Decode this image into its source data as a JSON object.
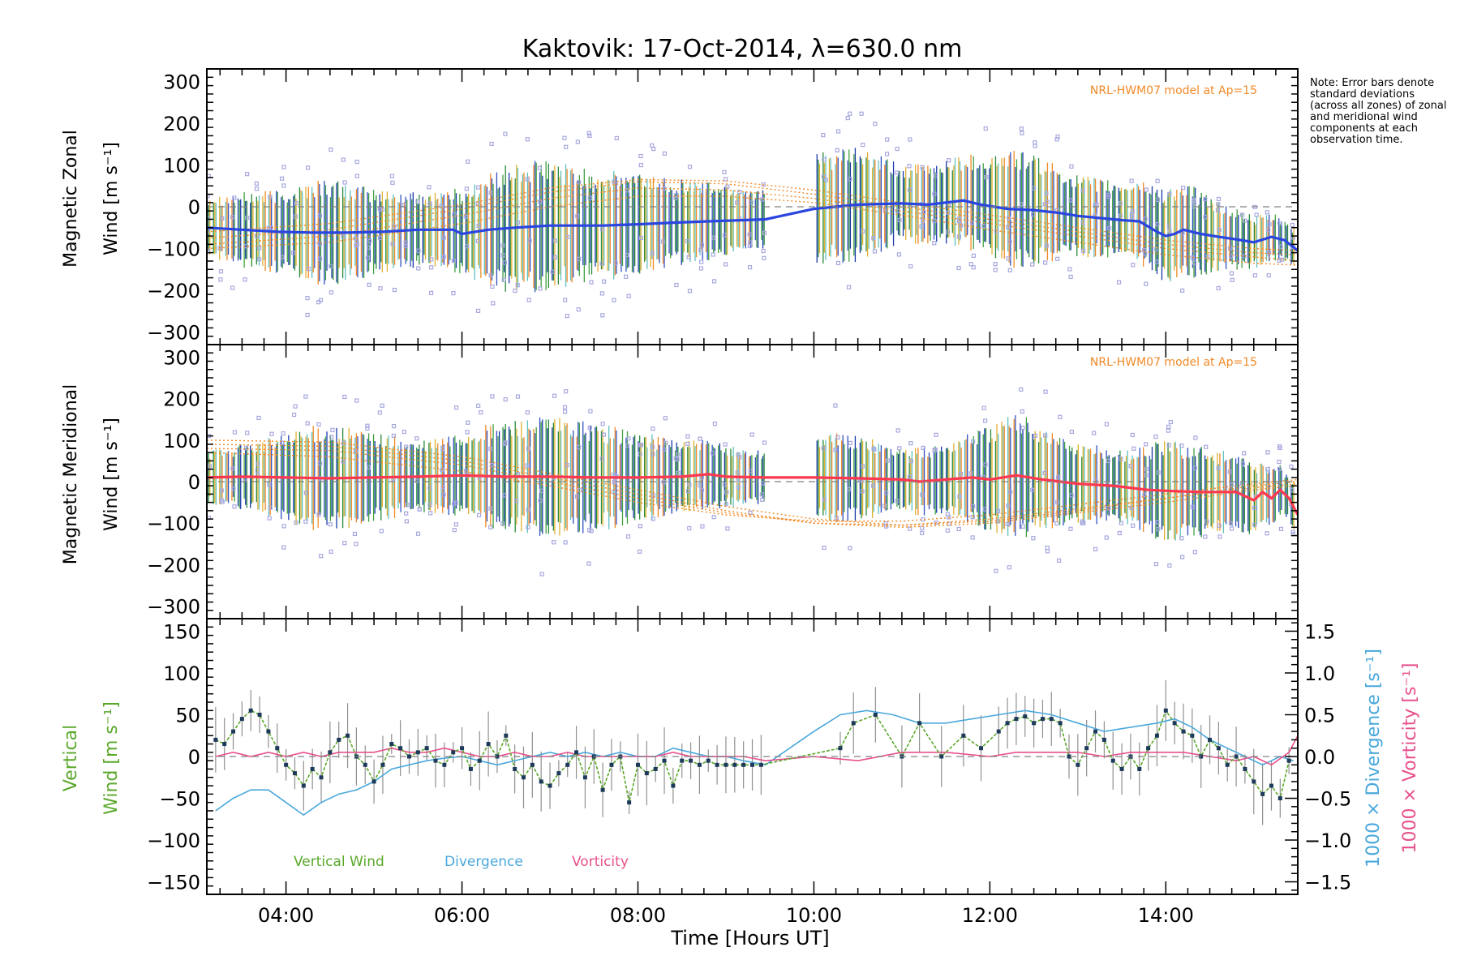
{
  "note": "Note: Error bars denote standard deviations (across all zones) of zonal and meridional wind components at each observation time.",
  "chart_data": [
    {
      "type": "line",
      "title": "Kaktovik: 17-Oct-2014, λ=630.0 nm",
      "panel": "zonal",
      "ylabel": [
        "Magnetic Zonal",
        "Wind"
      ],
      "yunit": "[m s⁻¹]",
      "ylim": [
        -330,
        330
      ],
      "yticks": [
        -300,
        -200,
        -100,
        0,
        100,
        200,
        300
      ],
      "xlim": [
        3.1,
        15.5
      ],
      "model_label": "NRL-HWM07 model at Ap=15",
      "line_color": "#2a45e0",
      "mean": {
        "x": [
          3.1,
          3.5,
          3.9,
          4.3,
          4.7,
          5.1,
          5.5,
          5.9,
          6.0,
          6.3,
          6.6,
          7.0,
          7.3,
          7.6,
          8.0,
          8.4,
          8.8,
          9.2,
          9.45,
          10.0,
          10.5,
          11.0,
          11.3,
          11.5,
          11.7,
          11.9,
          12.2,
          12.5,
          12.8,
          13.0,
          13.3,
          13.5,
          13.7,
          13.9,
          14.0,
          14.1,
          14.2,
          14.4,
          14.6,
          14.8,
          15.0,
          15.2,
          15.35,
          15.5
        ],
        "y": [
          -50,
          -55,
          -60,
          -62,
          -62,
          -60,
          -55,
          -55,
          -65,
          -55,
          -50,
          -45,
          -45,
          -45,
          -42,
          -38,
          -35,
          -32,
          -30,
          -5,
          5,
          8,
          5,
          10,
          15,
          5,
          -5,
          -8,
          -15,
          -22,
          -28,
          -32,
          -35,
          -60,
          -70,
          -65,
          -55,
          -65,
          -72,
          -78,
          -85,
          -72,
          -80,
          -105
        ]
      },
      "model_curves": [
        {
          "x": [
            3.1,
            4.5,
            6.0,
            7.0,
            8.0,
            9.0,
            10.0,
            11.0,
            12.0,
            13.0,
            14.0,
            15.0,
            15.5
          ],
          "y": [
            -90,
            -70,
            -20,
            20,
            45,
            40,
            20,
            -10,
            -40,
            -70,
            -100,
            -120,
            -130
          ]
        },
        {
          "x": [
            3.1,
            4.5,
            6.0,
            7.0,
            8.0,
            9.0,
            10.0,
            11.0,
            12.0,
            13.0,
            14.0,
            15.0,
            15.5
          ],
          "y": [
            -75,
            -55,
            -5,
            35,
            60,
            55,
            30,
            0,
            -30,
            -60,
            -90,
            -110,
            -115
          ]
        },
        {
          "x": [
            3.1,
            4.5,
            6.0,
            7.0,
            8.0,
            9.0,
            10.0,
            11.0,
            12.0,
            13.0,
            14.0,
            15.0,
            15.5
          ],
          "y": [
            -60,
            -40,
            5,
            45,
            65,
            62,
            40,
            10,
            -20,
            -50,
            -80,
            -100,
            -105
          ]
        },
        {
          "x": [
            3.1,
            4.5,
            6.0,
            7.0,
            8.0,
            9.0,
            10.0,
            11.0,
            12.0,
            13.0,
            14.0,
            15.0,
            15.5
          ],
          "y": [
            -100,
            -85,
            -40,
            0,
            25,
            25,
            10,
            -20,
            -55,
            -85,
            -115,
            -135,
            -140
          ]
        }
      ],
      "spread": {
        "x": [
          3.3,
          4.0,
          4.4,
          5.0,
          5.5,
          6.0,
          6.5,
          7.0,
          7.5,
          8.0,
          8.5,
          9.0,
          9.5,
          10.0,
          10.5,
          11.0,
          11.5,
          12.0,
          12.3,
          12.6,
          13.0,
          13.5,
          14.0,
          14.3,
          14.6,
          15.0,
          15.4
        ],
        "sd": [
          120,
          150,
          190,
          150,
          130,
          150,
          220,
          230,
          190,
          180,
          150,
          130,
          100,
          190,
          200,
          130,
          150,
          180,
          210,
          180,
          140,
          130,
          170,
          160,
          120,
          90,
          70
        ]
      }
    },
    {
      "type": "line",
      "panel": "meridional",
      "ylabel": [
        "Magnetic Meridional",
        "Wind"
      ],
      "yunit": "[m s⁻¹]",
      "ylim": [
        -330,
        330
      ],
      "yticks": [
        -300,
        -200,
        -100,
        0,
        100,
        200,
        300
      ],
      "xlim": [
        3.1,
        15.5
      ],
      "model_label": "NRL-HWM07 model at Ap=15",
      "line_color": "#ff3850",
      "mean": {
        "x": [
          3.1,
          3.5,
          4.0,
          4.5,
          5.0,
          5.5,
          6.0,
          6.5,
          7.0,
          7.5,
          8.0,
          8.5,
          8.8,
          9.0,
          9.45,
          10.0,
          10.5,
          11.0,
          11.2,
          11.5,
          11.8,
          12.0,
          12.3,
          12.6,
          13.0,
          13.4,
          13.8,
          14.0,
          14.4,
          14.8,
          15.0,
          15.1,
          15.2,
          15.3,
          15.4,
          15.5
        ],
        "y": [
          10,
          12,
          10,
          8,
          10,
          12,
          15,
          12,
          12,
          10,
          10,
          12,
          18,
          12,
          10,
          10,
          8,
          5,
          0,
          5,
          10,
          5,
          15,
          5,
          -5,
          -10,
          -20,
          -22,
          -25,
          -25,
          -45,
          -25,
          -40,
          -20,
          -40,
          -80
        ]
      },
      "model_curves": [
        {
          "x": [
            3.1,
            4.5,
            6.0,
            7.0,
            8.0,
            9.0,
            10.0,
            11.0,
            12.0,
            13.0,
            14.0,
            15.0,
            15.5
          ],
          "y": [
            100,
            95,
            60,
            20,
            -20,
            -60,
            -90,
            -105,
            -95,
            -70,
            -40,
            -10,
            0
          ]
        },
        {
          "x": [
            3.1,
            4.5,
            6.0,
            7.0,
            8.0,
            9.0,
            10.0,
            11.0,
            12.0,
            13.0,
            14.0,
            15.0,
            15.5
          ],
          "y": [
            90,
            85,
            50,
            10,
            -30,
            -70,
            -100,
            -110,
            -100,
            -75,
            -50,
            -20,
            -10
          ]
        },
        {
          "x": [
            3.1,
            4.5,
            6.0,
            7.0,
            8.0,
            9.0,
            10.0,
            11.0,
            12.0,
            13.0,
            14.0,
            15.0,
            15.5
          ],
          "y": [
            80,
            75,
            40,
            0,
            -40,
            -75,
            -100,
            -105,
            -90,
            -65,
            -40,
            -15,
            -5
          ]
        },
        {
          "x": [
            3.1,
            4.5,
            6.0,
            7.0,
            8.0,
            9.0,
            10.0,
            11.0,
            12.0,
            13.0,
            14.0,
            15.0,
            15.5
          ],
          "y": [
            70,
            60,
            25,
            -10,
            -50,
            -80,
            -95,
            -95,
            -80,
            -55,
            -30,
            -5,
            5
          ]
        }
      ],
      "spread": {
        "x": [
          3.3,
          4.0,
          4.4,
          5.0,
          5.5,
          6.0,
          6.5,
          7.0,
          7.5,
          8.0,
          8.5,
          9.0,
          9.5,
          10.0,
          10.5,
          11.0,
          11.5,
          12.0,
          12.3,
          12.6,
          13.0,
          13.5,
          14.0,
          14.3,
          14.6,
          15.0,
          15.4
        ],
        "sd": [
          100,
          150,
          190,
          160,
          120,
          150,
          200,
          210,
          190,
          160,
          130,
          110,
          90,
          160,
          150,
          110,
          130,
          190,
          220,
          190,
          140,
          130,
          180,
          170,
          150,
          120,
          90
        ]
      }
    },
    {
      "type": "line",
      "panel": "vertical",
      "ylabel": [
        "Vertical",
        "Wind"
      ],
      "yunit": "[m s⁻¹]",
      "ylim": [
        -165,
        165
      ],
      "yticks": [
        -150,
        -100,
        -50,
        0,
        50,
        100,
        150
      ],
      "y2lim": [
        -1.65,
        1.65
      ],
      "y2ticks": [
        -1.5,
        -1.0,
        -0.5,
        0.0,
        0.5,
        1.0,
        1.5
      ],
      "y2label_divergence": "1000 × Divergence",
      "y2label_vorticity": "1000 × Vorticity",
      "y2unit": "[s⁻¹]",
      "xlim": [
        3.1,
        15.5
      ],
      "xlabel": "Time [Hours UT]",
      "xticks": [
        4,
        6,
        8,
        10,
        12,
        14
      ],
      "xticklabels": [
        "04:00",
        "06:00",
        "08:00",
        "10:00",
        "12:00",
        "14:00"
      ],
      "series": [
        {
          "name": "Vertical Wind",
          "color": "#5aa82a",
          "axis": "left",
          "x": [
            3.2,
            3.3,
            3.4,
            3.5,
            3.6,
            3.7,
            3.8,
            3.9,
            4.0,
            4.1,
            4.2,
            4.3,
            4.4,
            4.5,
            4.6,
            4.7,
            4.8,
            4.9,
            5.0,
            5.1,
            5.2,
            5.3,
            5.4,
            5.5,
            5.6,
            5.7,
            5.8,
            5.9,
            6.0,
            6.1,
            6.2,
            6.3,
            6.4,
            6.5,
            6.6,
            6.7,
            6.8,
            6.9,
            7.0,
            7.1,
            7.2,
            7.3,
            7.4,
            7.5,
            7.6,
            7.7,
            7.8,
            7.9,
            8.0,
            8.1,
            8.2,
            8.3,
            8.4,
            8.5,
            8.6,
            8.7,
            8.8,
            8.9,
            9.0,
            9.1,
            9.2,
            9.3,
            9.4,
            10.3,
            10.45,
            10.7,
            11.0,
            11.2,
            11.45,
            11.7,
            11.9,
            12.1,
            12.2,
            12.3,
            12.4,
            12.5,
            12.6,
            12.7,
            12.8,
            12.9,
            13.0,
            13.1,
            13.2,
            13.3,
            13.4,
            13.5,
            13.6,
            13.7,
            13.8,
            13.9,
            14.0,
            14.1,
            14.2,
            14.3,
            14.4,
            14.5,
            14.6,
            14.7,
            14.8,
            14.9,
            15.0,
            15.1,
            15.2,
            15.3,
            15.4
          ],
          "y": [
            20,
            15,
            30,
            45,
            55,
            50,
            30,
            10,
            -10,
            -20,
            -35,
            -15,
            -25,
            5,
            20,
            25,
            0,
            -10,
            -30,
            -10,
            15,
            10,
            0,
            5,
            10,
            -5,
            -10,
            5,
            10,
            -15,
            -5,
            15,
            0,
            25,
            -15,
            -25,
            -10,
            -30,
            -35,
            -20,
            -10,
            5,
            -25,
            0,
            -40,
            -10,
            0,
            -55,
            -10,
            -20,
            -15,
            -5,
            -35,
            -5,
            -5,
            -10,
            -5,
            -10,
            -10,
            -10,
            -10,
            -10,
            -10,
            10,
            40,
            50,
            0,
            40,
            0,
            25,
            10,
            30,
            40,
            45,
            48,
            40,
            45,
            45,
            40,
            0,
            -10,
            10,
            30,
            20,
            -5,
            -15,
            0,
            -15,
            10,
            25,
            55,
            40,
            30,
            25,
            0,
            20,
            10,
            -10,
            0,
            -15,
            -30,
            -45,
            -35,
            -50,
            -5
          ]
        },
        {
          "name": "Divergence",
          "color": "#4aa8dc",
          "axis": "right",
          "x": [
            3.2,
            3.4,
            3.6,
            3.8,
            4.0,
            4.2,
            4.4,
            4.6,
            4.8,
            5.0,
            5.2,
            5.4,
            5.6,
            5.8,
            6.0,
            6.2,
            6.4,
            6.6,
            6.8,
            7.0,
            7.2,
            7.4,
            7.6,
            7.8,
            8.0,
            8.2,
            8.4,
            8.6,
            8.8,
            9.0,
            9.2,
            9.45,
            10.0,
            10.3,
            10.6,
            10.9,
            11.2,
            11.5,
            11.8,
            12.1,
            12.4,
            12.7,
            13.0,
            13.3,
            13.6,
            13.9,
            14.1,
            14.3,
            14.5,
            14.7,
            14.9,
            15.1,
            15.3,
            15.45
          ],
          "y": [
            -0.65,
            -0.5,
            -0.4,
            -0.4,
            -0.55,
            -0.7,
            -0.55,
            -0.45,
            -0.4,
            -0.3,
            -0.15,
            -0.1,
            -0.05,
            -0.02,
            0.0,
            -0.05,
            -0.1,
            -0.05,
            0.0,
            0.05,
            0.0,
            0.05,
            0.0,
            0.05,
            0.0,
            0.0,
            0.1,
            0.05,
            0.0,
            0.0,
            -0.05,
            -0.1,
            0.3,
            0.5,
            0.55,
            0.5,
            0.4,
            0.4,
            0.45,
            0.5,
            0.55,
            0.5,
            0.4,
            0.3,
            0.35,
            0.4,
            0.45,
            0.35,
            0.2,
            0.1,
            0.0,
            -0.1,
            0.0,
            -0.05
          ]
        },
        {
          "name": "Vorticity",
          "color": "#e8508c",
          "axis": "right",
          "x": [
            3.2,
            3.4,
            3.6,
            3.8,
            4.0,
            4.2,
            4.4,
            4.6,
            4.8,
            5.0,
            5.2,
            5.4,
            5.6,
            5.8,
            6.0,
            6.2,
            6.4,
            6.6,
            6.8,
            7.0,
            7.2,
            7.4,
            7.6,
            7.8,
            8.0,
            8.2,
            8.4,
            8.6,
            8.8,
            9.0,
            9.2,
            9.45,
            10.0,
            10.5,
            11.0,
            11.5,
            12.0,
            12.3,
            12.6,
            13.0,
            13.3,
            13.6,
            13.9,
            14.2,
            14.5,
            14.8,
            15.0,
            15.2,
            15.4,
            15.5
          ],
          "y": [
            0.0,
            0.05,
            0.0,
            0.05,
            0.0,
            0.05,
            0.0,
            0.05,
            0.05,
            0.05,
            0.1,
            0.05,
            0.05,
            0.1,
            0.05,
            0.0,
            0.0,
            0.05,
            0.0,
            0.0,
            0.05,
            0.0,
            0.0,
            0.0,
            0.0,
            0.0,
            0.05,
            0.0,
            0.0,
            0.0,
            0.0,
            -0.05,
            0.0,
            -0.05,
            0.05,
            0.05,
            0.0,
            0.05,
            0.05,
            0.05,
            0.0,
            0.05,
            0.05,
            0.05,
            0.0,
            -0.05,
            0.0,
            -0.1,
            0.05,
            0.25
          ]
        }
      ]
    }
  ]
}
